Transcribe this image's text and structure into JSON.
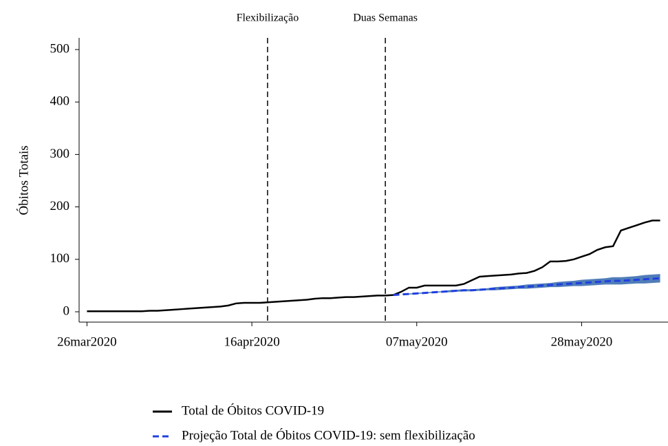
{
  "chart_data": {
    "type": "line",
    "ylabel": "Óbitos Totais",
    "x_start": "2020-03-26",
    "xlim": [
      "2020-03-25",
      "2020-06-08"
    ],
    "xticks": [
      {
        "value": "2020-03-26",
        "label": "26mar2020"
      },
      {
        "value": "2020-04-16",
        "label": "16apr2020"
      },
      {
        "value": "2020-05-07",
        "label": "07may2020"
      },
      {
        "value": "2020-05-28",
        "label": "28may2020"
      }
    ],
    "ylim": [
      0,
      500
    ],
    "yticks": [
      0,
      100,
      200,
      300,
      400,
      500
    ],
    "events": [
      {
        "x": "2020-04-18",
        "label": "Flexibilização"
      },
      {
        "x": "2020-05-03",
        "label": "Duas Semanas"
      }
    ],
    "series": [
      {
        "name": "Total de Óbitos COVID-19",
        "color": "#000000",
        "dash": false,
        "values": [
          1,
          1,
          1,
          1,
          1,
          1,
          1,
          1,
          2,
          2,
          3,
          4,
          5,
          6,
          7,
          8,
          9,
          10,
          12,
          16,
          17,
          17,
          17,
          18,
          19,
          20,
          21,
          22,
          23,
          25,
          26,
          26,
          27,
          28,
          28,
          29,
          30,
          31,
          31,
          32,
          38,
          46,
          46,
          50,
          50,
          50,
          50,
          50,
          53,
          60,
          67,
          68,
          69,
          70,
          71,
          73,
          74,
          78,
          85,
          96,
          96,
          97,
          100,
          105,
          110,
          118,
          123,
          125,
          155,
          160,
          165,
          170,
          174,
          174
        ]
      },
      {
        "name": "Projeção Total de Óbitos COVID-19: sem flexibilização",
        "color": "#1f3fe0",
        "dash": true,
        "values": [
          null,
          null,
          null,
          null,
          null,
          null,
          null,
          null,
          null,
          null,
          null,
          null,
          null,
          null,
          null,
          null,
          null,
          null,
          null,
          null,
          null,
          null,
          null,
          null,
          null,
          null,
          null,
          null,
          null,
          null,
          null,
          null,
          null,
          null,
          null,
          null,
          null,
          null,
          null,
          32,
          33,
          34,
          35,
          36,
          37,
          38,
          39,
          40,
          41,
          41,
          42,
          43,
          44,
          45,
          46,
          47,
          48,
          49,
          50,
          51,
          52,
          53,
          54,
          55,
          56,
          57,
          58,
          59,
          59,
          60,
          61,
          62,
          63,
          64
        ]
      }
    ],
    "band": {
      "color": "#3d6fb0",
      "lower": [
        null,
        null,
        null,
        null,
        null,
        null,
        null,
        null,
        null,
        null,
        null,
        null,
        null,
        null,
        null,
        null,
        null,
        null,
        null,
        null,
        null,
        null,
        null,
        null,
        null,
        null,
        null,
        null,
        null,
        null,
        null,
        null,
        null,
        null,
        null,
        null,
        null,
        null,
        null,
        32,
        33,
        33,
        34,
        35,
        36,
        37,
        37,
        38,
        39,
        39,
        40,
        41,
        41,
        42,
        43,
        44,
        44,
        45,
        46,
        47,
        47,
        48,
        49,
        49,
        50,
        51,
        52,
        52,
        52,
        53,
        54,
        54,
        55,
        56
      ],
      "upper": [
        null,
        null,
        null,
        null,
        null,
        null,
        null,
        null,
        null,
        null,
        null,
        null,
        null,
        null,
        null,
        null,
        null,
        null,
        null,
        null,
        null,
        null,
        null,
        null,
        null,
        null,
        null,
        null,
        null,
        null,
        null,
        null,
        null,
        null,
        null,
        null,
        null,
        null,
        null,
        32,
        33,
        35,
        36,
        37,
        38,
        39,
        41,
        42,
        43,
        43,
        44,
        45,
        47,
        48,
        49,
        50,
        52,
        53,
        54,
        55,
        57,
        58,
        59,
        61,
        62,
        63,
        64,
        66,
        66,
        67,
        68,
        70,
        71,
        72
      ]
    }
  }
}
